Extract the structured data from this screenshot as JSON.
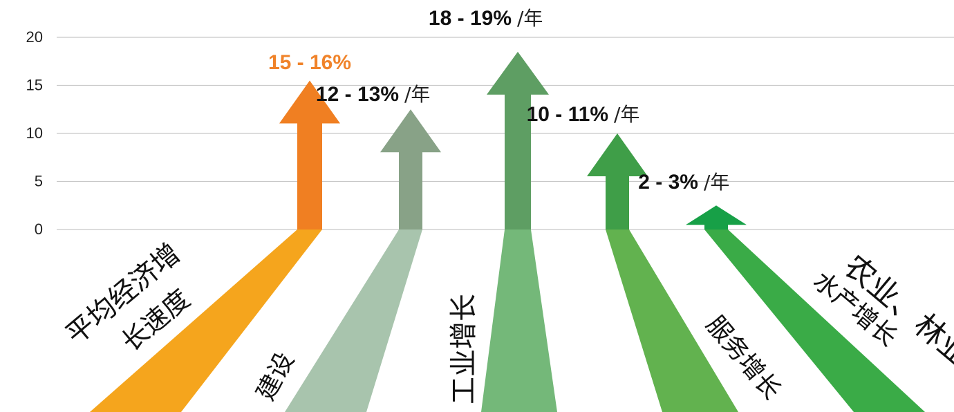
{
  "corner_text": "",
  "chart_data": {
    "type": "bar",
    "ylim": [
      0,
      20
    ],
    "yticks": [
      0,
      5,
      10,
      15,
      20
    ],
    "grid": true,
    "categories": [
      [
        "平均经济增",
        "长速度"
      ],
      [
        "建设"
      ],
      [
        "工业增长"
      ],
      [
        "服务增长"
      ],
      [
        "农业、林业和",
        "水产增长"
      ]
    ],
    "values": [
      15.5,
      12.5,
      18.5,
      10,
      2.5
    ],
    "value_labels": [
      "15 - 16%",
      "12 - 13%",
      "18 - 19%",
      "10 - 11%",
      "2 - 3%"
    ],
    "unit_labels": [
      "",
      "/年",
      "/年",
      "/年",
      "/年"
    ],
    "colors": {
      "shafts": [
        "#f07f22",
        "#88a287",
        "#5e9e63",
        "#3f9e48",
        "#17a047"
      ],
      "floor": [
        "#f5a51d",
        "#a8c4ad",
        "#74b879",
        "#62b24f",
        "#3aab47"
      ],
      "value_label": [
        "#f0832a",
        "#111111",
        "#111111",
        "#111111",
        "#111111"
      ],
      "grid": "#c8c8c8",
      "ticks": "#222222"
    }
  }
}
